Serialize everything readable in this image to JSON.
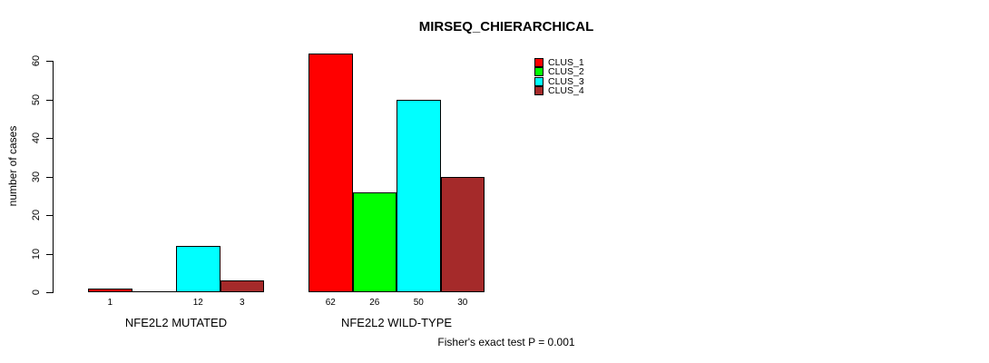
{
  "chart_data": {
    "type": "bar",
    "title": "MIRSEQ_CHIERARCHICAL",
    "ylabel": "number of cases",
    "xlabel": "",
    "ylim": [
      0,
      60
    ],
    "yticks": [
      0,
      10,
      20,
      30,
      40,
      50,
      60
    ],
    "grid": false,
    "legend_position": "top-right",
    "groups": [
      {
        "label": "NFE2L2 MUTATED"
      },
      {
        "label": "NFE2L2 WILD-TYPE"
      }
    ],
    "series": [
      {
        "name": "CLUS_1",
        "color": "#FF0000",
        "values": [
          1,
          62
        ]
      },
      {
        "name": "CLUS_2",
        "color": "#00FF00",
        "values": [
          0,
          26
        ]
      },
      {
        "name": "CLUS_3",
        "color": "#00FFFF",
        "values": [
          12,
          50
        ]
      },
      {
        "name": "CLUS_4",
        "color": "#A52A2A",
        "values": [
          3,
          30
        ]
      }
    ],
    "bar_value_labels": [
      [
        "1",
        "",
        "12",
        "3"
      ],
      [
        "62",
        "26",
        "50",
        "30"
      ]
    ],
    "annotation": "Fisher's exact test P = 0.001"
  }
}
